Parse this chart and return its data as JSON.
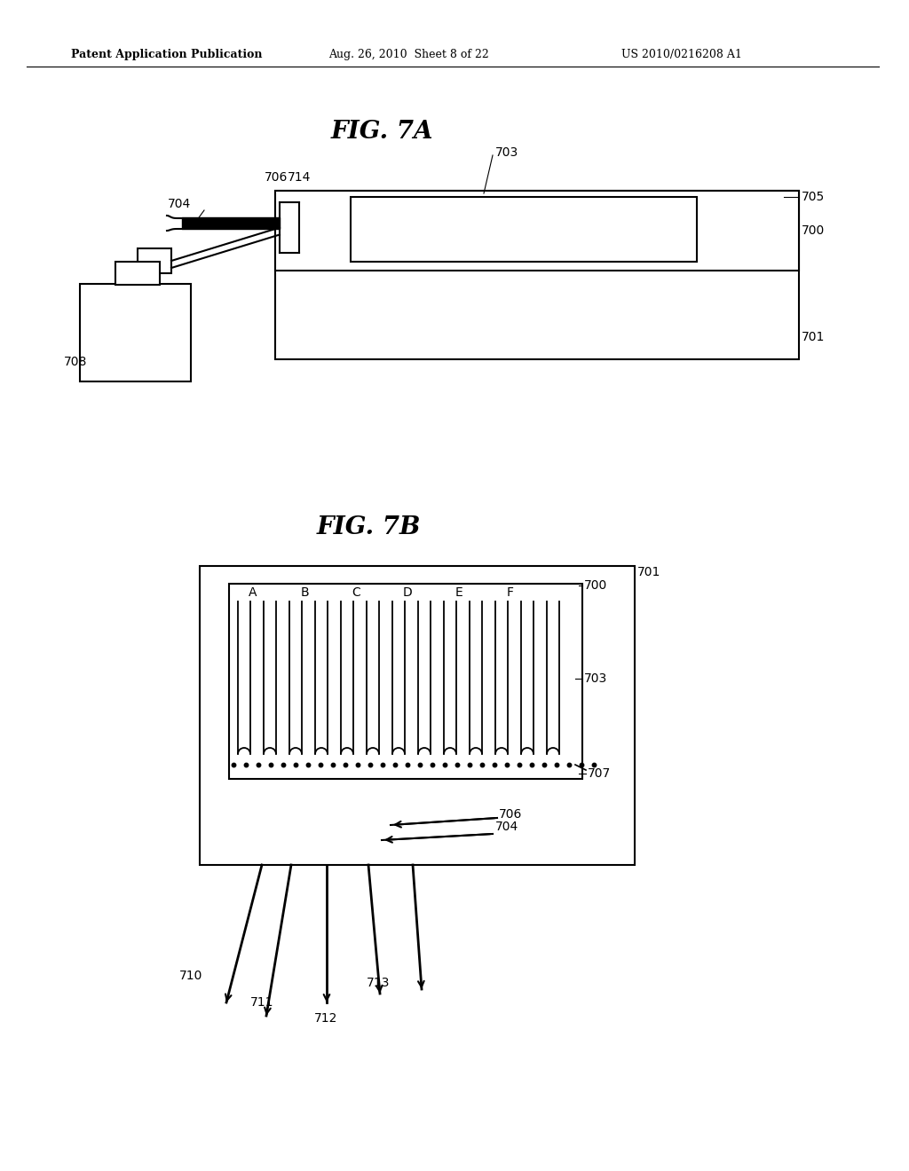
{
  "background_color": "#ffffff",
  "header_text": "Patent Application Publication",
  "header_date": "Aug. 26, 2010  Sheet 8 of 22",
  "header_patent": "US 2010/0216208 A1",
  "fig7a_title": "FIG. 7A",
  "fig7b_title": "FIG. 7B",
  "label_color": "#000000",
  "line_color": "#000000"
}
